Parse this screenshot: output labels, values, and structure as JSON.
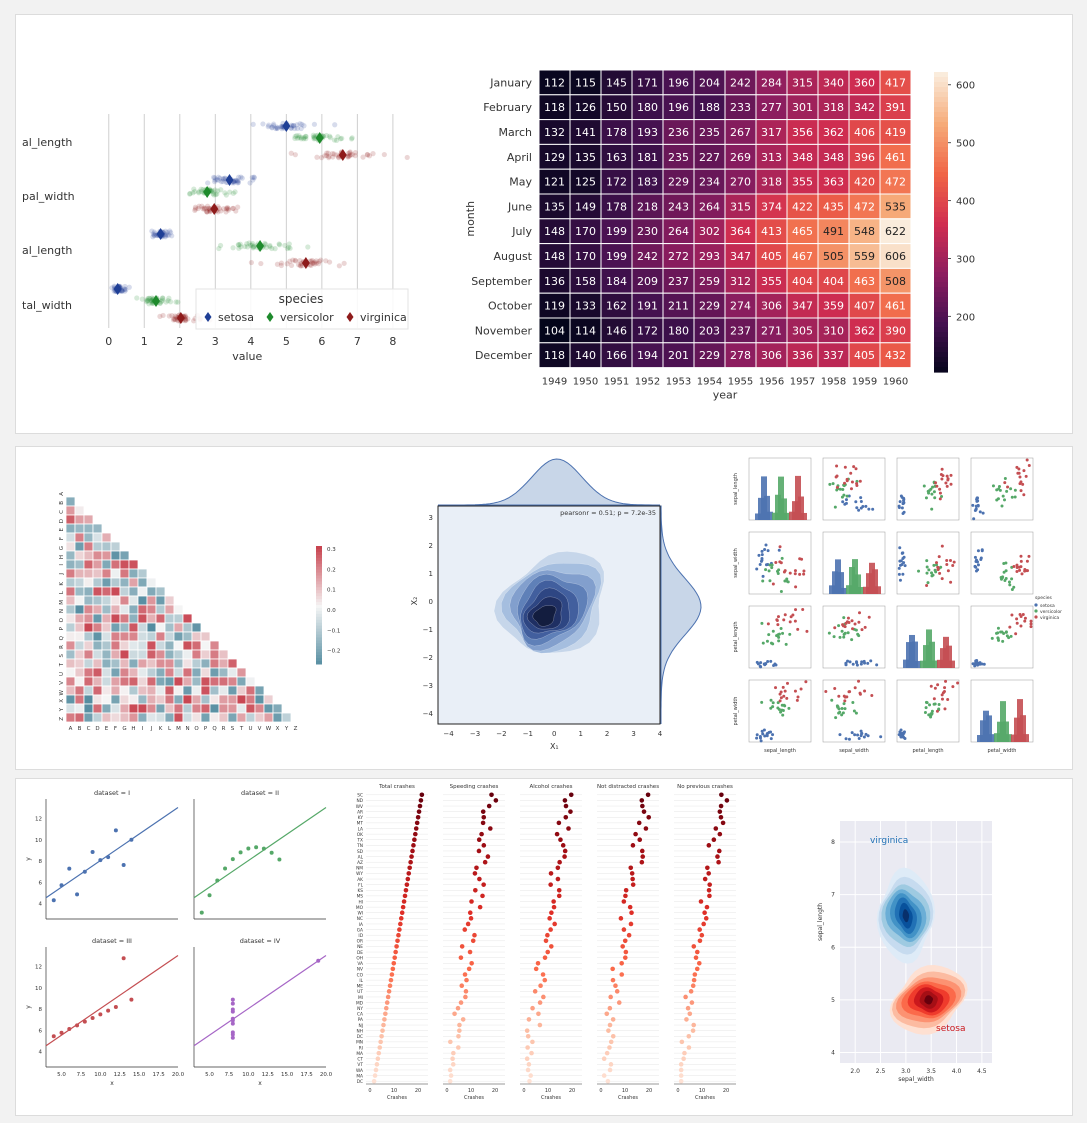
{
  "colors": {
    "setosa": "#1f3f96",
    "versicolor": "#1e8a2c",
    "virginica": "#8e1b1b",
    "blue": "#4c72b0",
    "green": "#55a868",
    "red": "#c44e52",
    "purple": "#a666c6"
  },
  "chart_data": [
    {
      "id": "iris_strip",
      "type": "scatter",
      "title": "",
      "xlabel": "value",
      "ylabel": "",
      "xlim": [
        -0.5,
        8.2
      ],
      "xticks": [
        "0",
        "1",
        "2",
        "3",
        "4",
        "5",
        "6",
        "7",
        "8"
      ],
      "categories": [
        "al_length",
        "pal_width",
        "al_length",
        "tal_width"
      ],
      "legend_title": "species",
      "series": [
        {
          "name": "setosa",
          "means": [
            5.0,
            3.4,
            1.46,
            0.25
          ],
          "spread": [
            0.35,
            0.38,
            0.17,
            0.11
          ]
        },
        {
          "name": "versicolor",
          "means": [
            5.94,
            2.77,
            4.26,
            1.33
          ],
          "spread": [
            0.5,
            0.31,
            0.47,
            0.2
          ]
        },
        {
          "name": "virginica",
          "means": [
            6.59,
            2.97,
            5.55,
            2.03
          ],
          "spread": [
            0.64,
            0.32,
            0.55,
            0.27
          ]
        }
      ]
    },
    {
      "id": "flights_heatmap",
      "type": "heatmap",
      "xlabel": "year",
      "ylabel": "month",
      "x": [
        "1949",
        "1950",
        "1951",
        "1952",
        "1953",
        "1954",
        "1955",
        "1956",
        "1957",
        "1958",
        "1959",
        "1960"
      ],
      "y": [
        "January",
        "February",
        "March",
        "April",
        "May",
        "June",
        "July",
        "August",
        "September",
        "October",
        "November",
        "December"
      ],
      "values": [
        [
          112,
          115,
          145,
          171,
          196,
          204,
          242,
          284,
          315,
          340,
          360,
          417
        ],
        [
          118,
          126,
          150,
          180,
          196,
          188,
          233,
          277,
          301,
          318,
          342,
          391
        ],
        [
          132,
          141,
          178,
          193,
          236,
          235,
          267,
          317,
          356,
          362,
          406,
          419
        ],
        [
          129,
          135,
          163,
          181,
          235,
          227,
          269,
          313,
          348,
          348,
          396,
          461
        ],
        [
          121,
          125,
          172,
          183,
          229,
          234,
          270,
          318,
          355,
          363,
          420,
          472
        ],
        [
          135,
          149,
          178,
          218,
          243,
          264,
          315,
          374,
          422,
          435,
          472,
          535
        ],
        [
          148,
          170,
          199,
          230,
          264,
          302,
          364,
          413,
          465,
          491,
          548,
          622
        ],
        [
          148,
          170,
          199,
          242,
          272,
          293,
          347,
          405,
          467,
          505,
          559,
          606
        ],
        [
          136,
          158,
          184,
          209,
          237,
          259,
          312,
          355,
          404,
          404,
          463,
          508
        ],
        [
          119,
          133,
          162,
          191,
          211,
          229,
          274,
          306,
          347,
          359,
          407,
          461
        ],
        [
          104,
          114,
          146,
          172,
          180,
          203,
          237,
          271,
          305,
          310,
          362,
          390
        ],
        [
          118,
          140,
          166,
          194,
          201,
          229,
          278,
          306,
          336,
          337,
          405,
          432
        ]
      ],
      "colorbar_ticks": [
        "200",
        "300",
        "400",
        "500",
        "600"
      ],
      "range": [
        104,
        622
      ]
    },
    {
      "id": "corr_matrix",
      "type": "heatmap",
      "labels_y": [
        "A",
        "B",
        "C",
        "D",
        "E",
        "F",
        "G",
        "H",
        "I",
        "J",
        "K",
        "L",
        "M",
        "N",
        "O",
        "P",
        "Q",
        "R",
        "S",
        "T",
        "U",
        "V",
        "W",
        "X",
        "Y",
        "Z"
      ],
      "labels_x": [
        "A",
        "B",
        "C",
        "D",
        "E",
        "F",
        "G",
        "H",
        "I",
        "J",
        "K",
        "L",
        "M",
        "N",
        "O",
        "P",
        "Q",
        "R",
        "S",
        "T",
        "U",
        "V",
        "W",
        "X",
        "Y",
        "Z"
      ],
      "colorbar_ticks": [
        "0.3",
        "0.2",
        "0.1",
        "0.0",
        "−0.1",
        "−0.2"
      ],
      "range": [
        -0.3,
        0.3
      ]
    },
    {
      "id": "joint_kde",
      "type": "area",
      "annotation": "pearsonr = 0.51; p = 7.2e-35",
      "xlabel": "X₁",
      "ylabel": "X₂",
      "xticks": [
        "−4",
        "−3",
        "−2",
        "−1",
        "0",
        "1",
        "2",
        "3",
        "4"
      ],
      "yticks": [
        "3",
        "2",
        "1",
        "0",
        "−1",
        "−2",
        "−3",
        "−4"
      ],
      "xlim": [
        -4.4,
        4.0
      ],
      "ylim": [
        -4.4,
        3.4
      ]
    },
    {
      "id": "iris_pairplot",
      "type": "scatter",
      "variables": [
        "sepal_length",
        "sepal_width",
        "petal_length",
        "petal_width"
      ],
      "legend_title": "species",
      "legend": [
        "setosa",
        "versicolor",
        "virginica"
      ]
    },
    {
      "id": "anscombe",
      "type": "scatter",
      "xlabel": "x",
      "ylabel": "y",
      "panels": [
        {
          "title": "dataset = I",
          "x": [
            10,
            8,
            13,
            9,
            11,
            14,
            6,
            4,
            12,
            7,
            5
          ],
          "y": [
            8.04,
            6.95,
            7.58,
            8.81,
            8.33,
            9.96,
            7.24,
            4.26,
            10.84,
            4.82,
            5.68
          ]
        },
        {
          "title": "dataset = II",
          "x": [
            10,
            8,
            13,
            9,
            11,
            14,
            6,
            4,
            12,
            7,
            5
          ],
          "y": [
            9.14,
            8.14,
            8.74,
            8.77,
            9.26,
            8.1,
            6.13,
            3.1,
            9.13,
            7.26,
            4.74
          ]
        },
        {
          "title": "dataset = III",
          "x": [
            10,
            8,
            13,
            9,
            11,
            14,
            6,
            4,
            12,
            7,
            5
          ],
          "y": [
            7.46,
            6.77,
            12.74,
            7.11,
            7.81,
            8.84,
            6.08,
            5.39,
            8.15,
            6.42,
            5.73
          ]
        },
        {
          "title": "dataset = IV",
          "x": [
            8,
            8,
            8,
            8,
            8,
            8,
            8,
            19,
            8,
            8,
            8
          ],
          "y": [
            6.58,
            5.76,
            7.71,
            8.84,
            8.47,
            7.04,
            5.25,
            12.5,
            5.56,
            7.91,
            6.89
          ]
        }
      ],
      "yticks": [
        "4",
        "6",
        "8",
        "10",
        "12"
      ],
      "xticks": [
        "5.0",
        "7.5",
        "10.0",
        "12.5",
        "15.0",
        "17.5",
        "20.0"
      ]
    },
    {
      "id": "car_crashes",
      "type": "scatter",
      "titles": [
        "Total crashes",
        "Speeding crashes",
        "Alcohol crashes",
        "Not distracted crashes",
        "No previous crashes"
      ],
      "xlabel": "Crashes",
      "xticks": [
        "0",
        "10",
        "20"
      ],
      "states": [
        "SC",
        "ND",
        "WV",
        "AR",
        "KY",
        "MT",
        "LA",
        "OK",
        "TX",
        "TN",
        "SD",
        "AL",
        "AZ",
        "NM",
        "WY",
        "AK",
        "FL",
        "KS",
        "MS",
        "HI",
        "MO",
        "WI",
        "NC",
        "IA",
        "GA",
        "ID",
        "OR",
        "NE",
        "DE",
        "OH",
        "VA",
        "NV",
        "CO",
        "IL",
        "ME",
        "UT",
        "MI",
        "MD",
        "NY",
        "CA",
        "PA",
        "NJ",
        "NH",
        "DC",
        "MN",
        "RI",
        "MA",
        "CT",
        "VT",
        "WA",
        "MA",
        "DC"
      ]
    },
    {
      "id": "iris_bivariate_kde",
      "type": "area",
      "xlabel": "sepal_width",
      "ylabel": "sepal_length",
      "labels": [
        "virginica",
        "setosa"
      ],
      "xticks": [
        "2.0",
        "2.5",
        "3.0",
        "3.5",
        "4.0",
        "4.5"
      ],
      "yticks": [
        "8",
        "7",
        "6",
        "5",
        "4"
      ]
    }
  ]
}
